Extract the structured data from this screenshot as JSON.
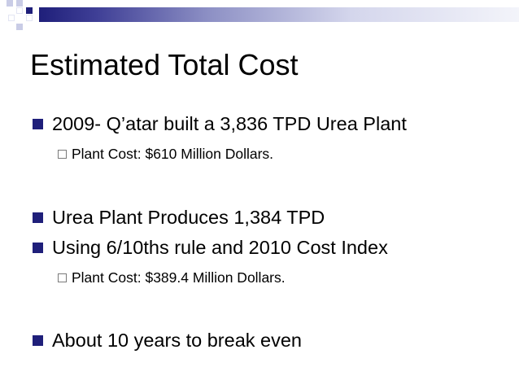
{
  "slide": {
    "title": "Estimated Total Cost",
    "bullets": [
      {
        "text": "2009- Q’atar built a 3,836 TPD Urea Plant",
        "sub": [
          "Plant Cost: $610 Million Dollars."
        ]
      },
      {
        "text": "Urea Plant Produces 1,384 TPD",
        "sub": []
      },
      {
        "text": "Using 6/10ths rule and 2010 Cost Index",
        "sub": [
          "Plant Cost: $389.4 Million Dollars."
        ]
      },
      {
        "text": "About 10 years to break even",
        "sub": []
      }
    ]
  },
  "colors": {
    "accent_navy": "#1f1f7a",
    "accent_light": "#c9cce6"
  }
}
